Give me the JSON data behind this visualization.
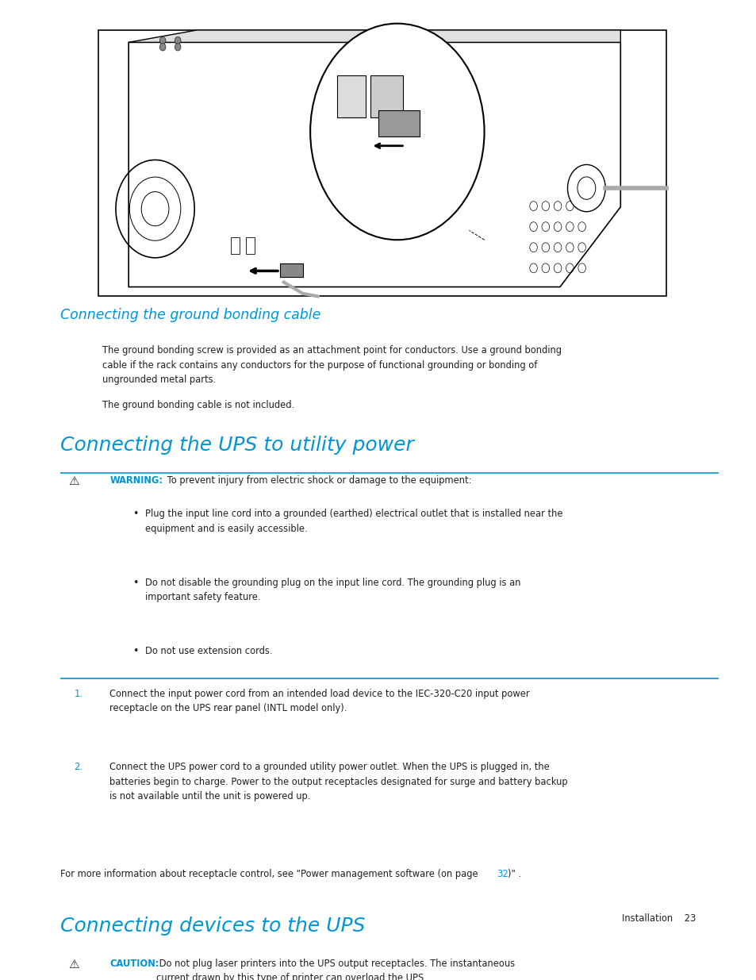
{
  "bg_color": "#ffffff",
  "blue_color": "#0096d6",
  "black_color": "#231f20",
  "section1_heading": "Connecting the ground bonding cable",
  "section1_body1": "The ground bonding screw is provided as an attachment point for conductors. Use a ground bonding\ncable if the rack contains any conductors for the purpose of functional grounding or bonding of\nungrounded metal parts.",
  "section1_body2": "The ground bonding cable is not included.",
  "section2_heading": "Connecting the UPS to utility power",
  "warning_label": "WARNING:",
  "warning_text": " To prevent injury from electric shock or damage to the equipment:",
  "bullet1": "Plug the input line cord into a grounded (earthed) electrical outlet that is installed near the\nequipment and is easily accessible.",
  "bullet2": "Do not disable the grounding plug on the input line cord. The grounding plug is an\nimportant safety feature.",
  "bullet3": "Do not use extension cords.",
  "num1_label": "1.",
  "num1_text": "Connect the input power cord from an intended load device to the IEC-320-C20 input power\nreceptacle on the UPS rear panel (INTL model only).",
  "num2_label": "2.",
  "num2_text": "Connect the UPS power cord to a grounded utility power outlet. When the UPS is plugged in, the\nbatteries begin to charge. Power to the output receptacles designated for surge and battery backup\nis not available until the unit is powered up.",
  "info_pre": "For more information about receptacle control, see \"Power management software (on page ",
  "info_link": "32",
  "info_post": ")\" .",
  "section3_heading": "Connecting devices to the UPS",
  "caution_label": "CAUTION:",
  "caution_text": " Do not plug laser printers into the UPS output receptacles. The instantaneous\ncurrent drawn by this type of printer can overload the UPS.",
  "footer_text": "Installation    23"
}
